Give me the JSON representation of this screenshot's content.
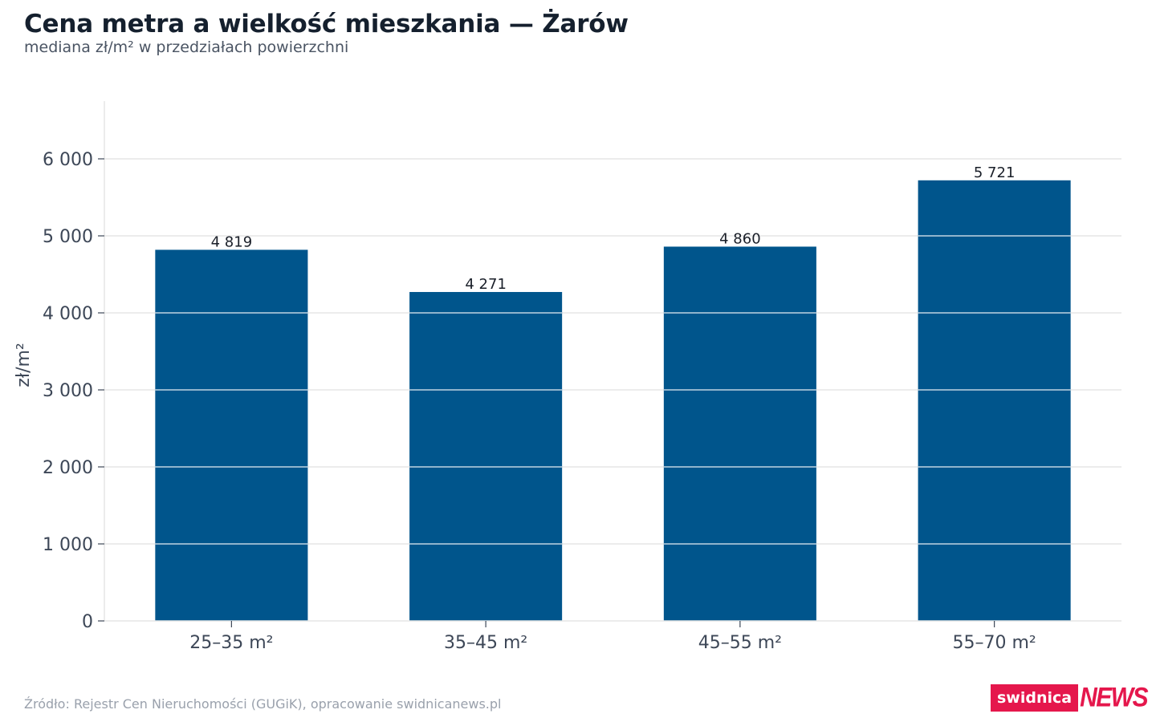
{
  "header": {
    "title": "Cena metra a wielkość mieszkania — Żarów",
    "subtitle": "mediana zł/m² w przedziałach powierzchni"
  },
  "footer": {
    "source": "Źródło: Rejestr Cen Nieruchomości (GUGiK), opracowanie swidnicanews.pl",
    "logo_left": "swidnica",
    "logo_right": "NEWS"
  },
  "colors": {
    "bar": "#00558c",
    "grid": "#e6e6e6",
    "brand": "#e5174c"
  },
  "chart_data": {
    "type": "bar",
    "title": "Cena metra a wielkość mieszkania — Żarów",
    "subtitle": "mediana zł/m² w przedziałach powierzchni",
    "xlabel": "",
    "ylabel": "zł/m²",
    "categories": [
      "25–35 m²",
      "35–45 m²",
      "45–55 m²",
      "55–70 m²"
    ],
    "values": [
      4819,
      4271,
      4860,
      5721
    ],
    "value_labels": [
      "4 819",
      "4 271",
      "4 860",
      "5 721"
    ],
    "ylim": [
      0,
      6750
    ],
    "yticks": [
      0,
      1000,
      2000,
      3000,
      4000,
      5000,
      6000
    ],
    "ytick_labels": [
      "0",
      "1 000",
      "2 000",
      "3 000",
      "4 000",
      "5 000",
      "6 000"
    ],
    "grid": true,
    "legend": "none"
  }
}
